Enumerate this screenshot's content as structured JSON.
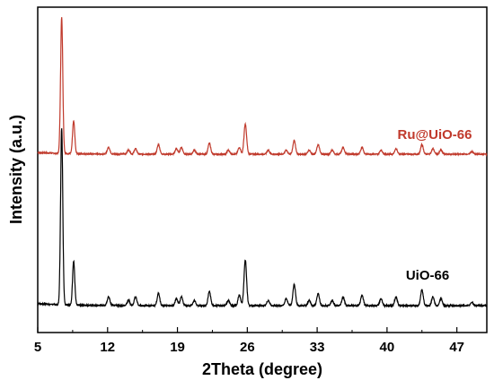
{
  "chart_data": {
    "type": "line",
    "xlabel": "2Theta (degree)",
    "ylabel": "Intensity (a.u.)",
    "xlim": [
      5,
      50
    ],
    "xticks": [
      5,
      12,
      19,
      26,
      33,
      40,
      47
    ],
    "y_ticks_shown": false,
    "grid": false,
    "legend": "inline labels",
    "series": [
      {
        "name": "Ru@UiO-66",
        "color": "#c0392b",
        "peaks": [
          {
            "x": 7.4,
            "h": 1.0
          },
          {
            "x": 8.6,
            "h": 0.24
          },
          {
            "x": 12.1,
            "h": 0.05
          },
          {
            "x": 14.1,
            "h": 0.03
          },
          {
            "x": 14.8,
            "h": 0.04
          },
          {
            "x": 17.1,
            "h": 0.07
          },
          {
            "x": 18.9,
            "h": 0.04
          },
          {
            "x": 19.4,
            "h": 0.05
          },
          {
            "x": 20.7,
            "h": 0.03
          },
          {
            "x": 22.2,
            "h": 0.08
          },
          {
            "x": 24.1,
            "h": 0.03
          },
          {
            "x": 25.2,
            "h": 0.05
          },
          {
            "x": 25.8,
            "h": 0.22
          },
          {
            "x": 28.1,
            "h": 0.03
          },
          {
            "x": 29.9,
            "h": 0.03
          },
          {
            "x": 30.7,
            "h": 0.1
          },
          {
            "x": 32.2,
            "h": 0.03
          },
          {
            "x": 33.1,
            "h": 0.07
          },
          {
            "x": 34.5,
            "h": 0.03
          },
          {
            "x": 35.6,
            "h": 0.05
          },
          {
            "x": 37.5,
            "h": 0.05
          },
          {
            "x": 39.4,
            "h": 0.03
          },
          {
            "x": 40.9,
            "h": 0.04
          },
          {
            "x": 43.5,
            "h": 0.07
          },
          {
            "x": 44.6,
            "h": 0.04
          },
          {
            "x": 45.4,
            "h": 0.03
          },
          {
            "x": 48.5,
            "h": 0.02
          }
        ]
      },
      {
        "name": "UiO-66",
        "color": "#000000",
        "peaks": [
          {
            "x": 7.4,
            "h": 1.0
          },
          {
            "x": 8.6,
            "h": 0.25
          },
          {
            "x": 12.1,
            "h": 0.05
          },
          {
            "x": 14.1,
            "h": 0.03
          },
          {
            "x": 14.8,
            "h": 0.05
          },
          {
            "x": 17.1,
            "h": 0.07
          },
          {
            "x": 18.9,
            "h": 0.04
          },
          {
            "x": 19.4,
            "h": 0.05
          },
          {
            "x": 20.7,
            "h": 0.03
          },
          {
            "x": 22.2,
            "h": 0.08
          },
          {
            "x": 24.1,
            "h": 0.03
          },
          {
            "x": 25.2,
            "h": 0.06
          },
          {
            "x": 25.8,
            "h": 0.26
          },
          {
            "x": 28.1,
            "h": 0.03
          },
          {
            "x": 29.9,
            "h": 0.04
          },
          {
            "x": 30.7,
            "h": 0.12
          },
          {
            "x": 32.2,
            "h": 0.03
          },
          {
            "x": 33.1,
            "h": 0.07
          },
          {
            "x": 34.5,
            "h": 0.03
          },
          {
            "x": 35.6,
            "h": 0.05
          },
          {
            "x": 37.5,
            "h": 0.06
          },
          {
            "x": 39.4,
            "h": 0.04
          },
          {
            "x": 40.9,
            "h": 0.05
          },
          {
            "x": 43.5,
            "h": 0.09
          },
          {
            "x": 44.6,
            "h": 0.05
          },
          {
            "x": 45.4,
            "h": 0.04
          },
          {
            "x": 48.5,
            "h": 0.02
          }
        ]
      }
    ]
  }
}
